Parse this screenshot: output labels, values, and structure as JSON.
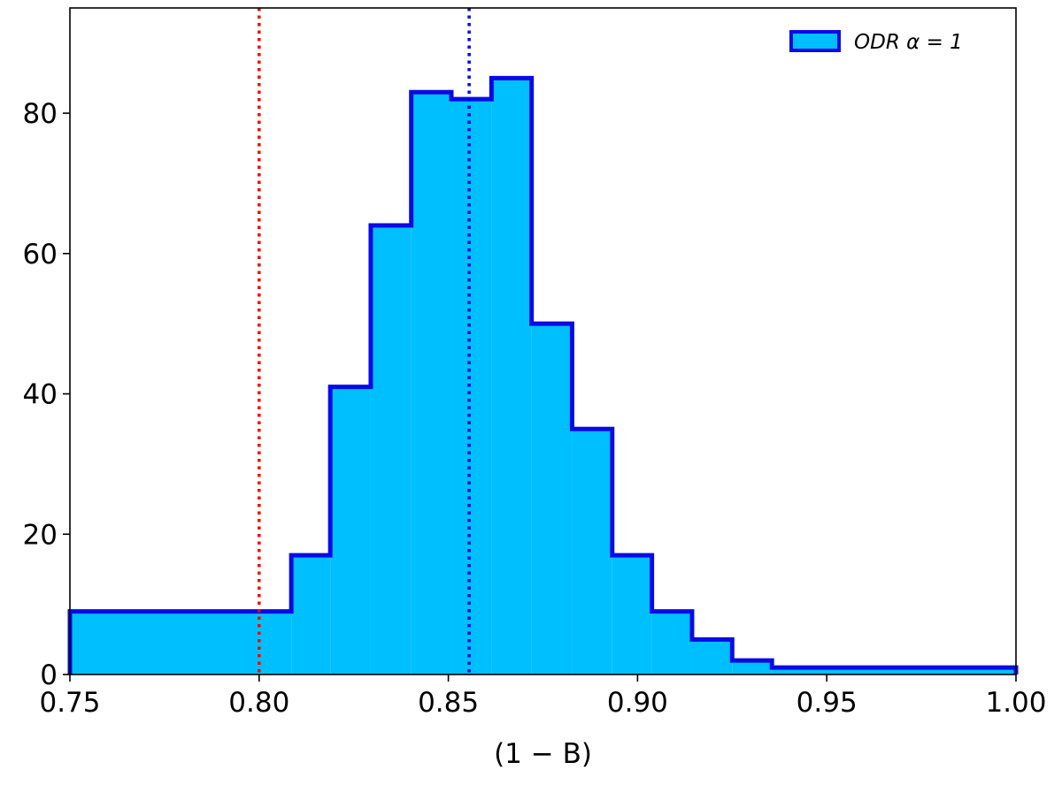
{
  "chart_data": {
    "type": "histogram",
    "xlabel": "(1 − B)",
    "ylabel": "",
    "title": "",
    "xlim": [
      0.75,
      1.0
    ],
    "ylim": [
      0,
      95
    ],
    "x_ticks": [
      0.75,
      0.8,
      0.85,
      0.9,
      0.95,
      1.0
    ],
    "x_tick_labels": [
      "0.75",
      "0.80",
      "0.85",
      "0.90",
      "0.95",
      "1.00"
    ],
    "y_ticks": [
      0,
      20,
      40,
      60,
      80
    ],
    "y_tick_labels": [
      "0",
      "20",
      "40",
      "60",
      "80"
    ],
    "grid": false,
    "legend_position": "top-right",
    "series": [
      {
        "name": "ODR α = 1",
        "fill_color": "#00bfff",
        "edge_color": "#0a0ae6",
        "bin_edges": [
          0.75,
          0.8085,
          0.8188,
          0.8295,
          0.8402,
          0.8508,
          0.8614,
          0.872,
          0.8827,
          0.8933,
          0.9038,
          0.9144,
          0.925,
          0.9355,
          1.0
        ],
        "counts": [
          9,
          17,
          41,
          64,
          83,
          82,
          85,
          50,
          35,
          17,
          9,
          5,
          2,
          1
        ]
      }
    ],
    "reference_lines": [
      {
        "x": 0.8,
        "color": "#ff0000",
        "style": "dotted"
      },
      {
        "x": 0.8555,
        "color": "#0000ff",
        "style": "dotted"
      }
    ]
  }
}
